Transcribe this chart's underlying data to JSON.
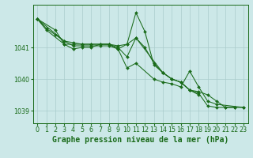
{
  "background_color": "#cce8e8",
  "grid_color": "#aacccc",
  "line_color": "#1a6b1a",
  "title": "Graphe pression niveau de la mer (hPa)",
  "xlim": [
    -0.5,
    23.5
  ],
  "ylim": [
    1038.6,
    1042.35
  ],
  "yticks": [
    1039,
    1040,
    1041
  ],
  "xticks": [
    0,
    1,
    2,
    3,
    4,
    5,
    6,
    7,
    8,
    9,
    10,
    11,
    12,
    13,
    14,
    15,
    16,
    17,
    18,
    19,
    20,
    21,
    22,
    23
  ],
  "series": [
    {
      "x": [
        0,
        1,
        2,
        3,
        4,
        5,
        6,
        7,
        8,
        9,
        10,
        11,
        12,
        13,
        14,
        15,
        16,
        17,
        18,
        19,
        20,
        21,
        22
      ],
      "y": [
        1041.9,
        1041.6,
        1041.4,
        1041.2,
        1041.15,
        1041.1,
        1041.1,
        1041.1,
        1041.1,
        1041.05,
        1041.1,
        1042.1,
        1041.5,
        1040.45,
        1040.2,
        1040.0,
        1039.9,
        1039.65,
        1039.55,
        1039.15,
        1039.1,
        1039.1,
        1039.1
      ]
    },
    {
      "x": [
        0,
        3,
        4,
        5,
        6,
        7,
        8,
        9,
        10,
        11,
        14,
        15,
        16,
        17,
        18
      ],
      "y": [
        1041.9,
        1041.2,
        1041.05,
        1041.05,
        1041.05,
        1041.05,
        1041.05,
        1040.95,
        1041.1,
        1041.3,
        1040.2,
        1040.0,
        1039.9,
        1039.65,
        1039.5
      ]
    },
    {
      "x": [
        0,
        2,
        3,
        4,
        5,
        6,
        7,
        8,
        9,
        10,
        11,
        13,
        14,
        15,
        16,
        17,
        18,
        19,
        20,
        23
      ],
      "y": [
        1041.9,
        1041.55,
        1041.1,
        1040.95,
        1041.0,
        1041.0,
        1041.1,
        1041.1,
        1040.95,
        1040.35,
        1040.5,
        1040.0,
        1039.9,
        1039.85,
        1039.75,
        1040.25,
        1039.75,
        1039.3,
        1039.2,
        1039.1
      ]
    },
    {
      "x": [
        0,
        1,
        3,
        4,
        5,
        6,
        7,
        8,
        9,
        10,
        11,
        12,
        13,
        14,
        15,
        16,
        17,
        18,
        19,
        20,
        21,
        22,
        23
      ],
      "y": [
        1041.9,
        1041.55,
        1041.1,
        1041.1,
        1041.1,
        1041.1,
        1041.1,
        1041.1,
        1041.0,
        1040.7,
        1041.3,
        1041.0,
        1040.5,
        1040.2,
        1040.0,
        1039.9,
        1039.65,
        1039.6,
        1039.5,
        1039.3,
        1039.1,
        1039.1,
        1039.1
      ]
    }
  ],
  "title_fontsize": 7,
  "tick_fontsize": 5.8,
  "figsize": [
    3.2,
    2.0
  ],
  "dpi": 100
}
